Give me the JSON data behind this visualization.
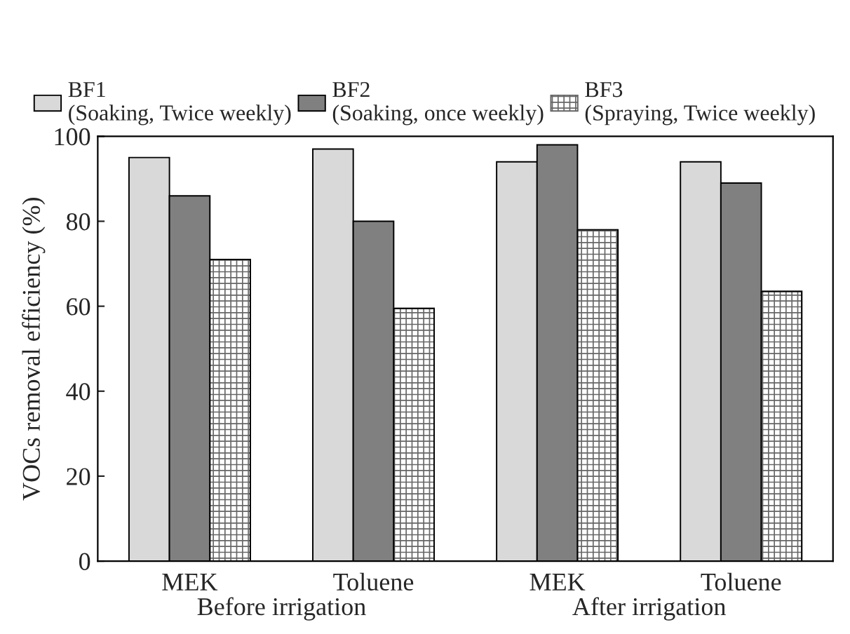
{
  "chart_data": {
    "type": "bar",
    "ylabel": "VOCs removal efficiency (%)",
    "categories": [
      "MEK",
      "Toluene",
      "MEK",
      "Toluene"
    ],
    "series": [
      {
        "name": "BF1\n(Soaking, Twice weekly)",
        "color": "#d9d9d9",
        "values": [
          95,
          97,
          94,
          94
        ]
      },
      {
        "name": "BF2\n(Soaking, once weekly)",
        "color": "#808080",
        "values": [
          86,
          80,
          98,
          89
        ]
      },
      {
        "name": "BF3\n(Spraying, Twice weekly)",
        "color": "#666666",
        "values": [
          71,
          59.5,
          78,
          63.5
        ]
      }
    ],
    "annotations": [
      "Before irrigation",
      "After irrigation"
    ],
    "ylim": [
      0,
      100
    ],
    "yticks": [
      0,
      20,
      40,
      60,
      80,
      100
    ],
    "grid": false,
    "legend": "top"
  }
}
